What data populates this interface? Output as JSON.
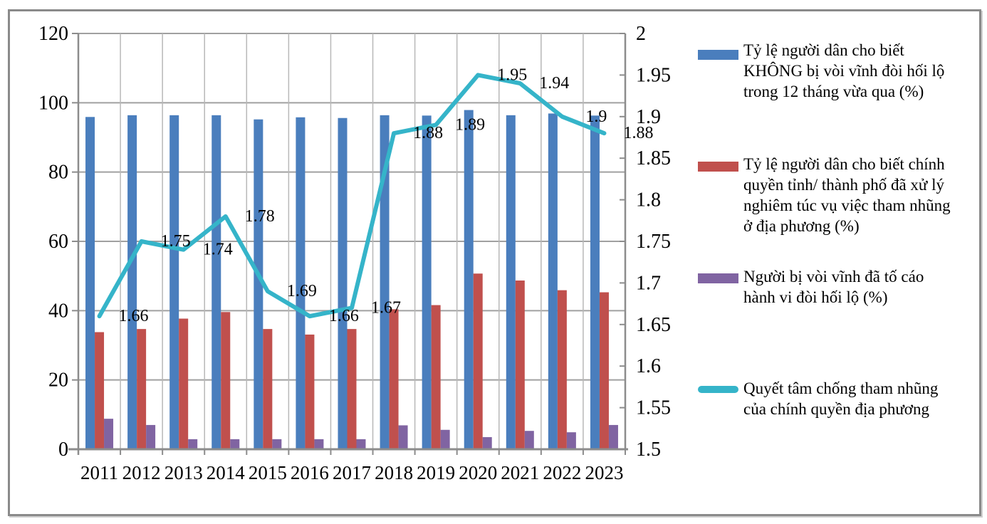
{
  "figure": {
    "background": "#ffffff",
    "frame_color": "#8a8a8a",
    "gridline_color": "#a0a0a0",
    "vertical_gridline_color": "#b8b8b8",
    "axis_color": "#8c8c8c",
    "text_color": "#000000"
  },
  "chart_data": {
    "type": "bar+line combo",
    "title": "",
    "xlabel": "",
    "ylabel": "",
    "grid": true,
    "legend_position": "right",
    "categories": [
      "2011",
      "2012",
      "2013",
      "2014",
      "2015",
      "2016",
      "2017",
      "2018",
      "2019",
      "2020",
      "2021",
      "2022",
      "2023"
    ],
    "left_axis": {
      "min": 0,
      "max": 120,
      "tick_labels": [
        "120",
        "100",
        "80",
        "60",
        "40",
        "20",
        "0"
      ]
    },
    "right_axis": {
      "min": 1.5,
      "max": 2,
      "tick_labels": [
        "2",
        "1.95",
        "1.9",
        "1.85",
        "1.8",
        "1.75",
        "1.7",
        "1.65",
        "1.6",
        "1.55",
        "1.5"
      ]
    },
    "series": [
      {
        "name": "Tỷ lệ người dân cho biết KHÔNG bị vòi vĩnh đòi hối lộ trong 12 tháng vừa qua (%)",
        "type": "bar",
        "axis": "left",
        "color": "#4a7ebd",
        "values": [
          95.9,
          96.4,
          96.4,
          96.4,
          95.2,
          95.8,
          95.6,
          96.4,
          96.3,
          97.9,
          96.4,
          96.9,
          96.3
        ]
      },
      {
        "name": "Tỷ lệ người dân cho biết chính quyền tỉnh/ thành phố đã xử lý nghiêm túc vụ việc tham nhũng ở địa phương (%)",
        "type": "bar",
        "axis": "left",
        "color": "#c0504d",
        "values": [
          33.8,
          34.7,
          37.7,
          39.6,
          34.7,
          33.1,
          34.7,
          40.4,
          41.6,
          50.7,
          48.7,
          45.9,
          45.3
        ]
      },
      {
        "name": "Người bị vòi vĩnh đã tố cáo hành vi đòi hối lộ (%)",
        "type": "bar",
        "axis": "left",
        "color": "#8064a2",
        "values": [
          8.8,
          7.0,
          2.9,
          2.9,
          2.9,
          2.9,
          2.9,
          6.9,
          5.6,
          3.5,
          5.3,
          4.9,
          7.0
        ]
      },
      {
        "name": "Quyết tâm chống tham nhũng của chính quyền địa phương",
        "type": "line",
        "axis": "right",
        "color": "#35b4c9",
        "values": [
          1.66,
          1.75,
          1.74,
          1.78,
          1.69,
          1.66,
          1.67,
          1.88,
          1.89,
          1.95,
          1.94,
          1.9,
          1.88
        ],
        "point_labels": [
          "1.66",
          "1.75",
          "1.74",
          "1.78",
          "1.69",
          "1.66",
          "1.67",
          "1.88",
          "1.89",
          "1.95",
          "1.94",
          "1.9",
          "1.88"
        ]
      }
    ]
  },
  "legend": {
    "items": [
      {
        "color": "#4a7ebd",
        "kind": "bar",
        "lines": [
          "Tỷ lệ người dân cho biết",
          "KHÔNG bị vòi vĩnh đòi hối lộ",
          "trong 12 tháng vừa qua (%)"
        ]
      },
      {
        "color": "#c0504d",
        "kind": "bar",
        "lines": [
          "Tỷ lệ người dân cho biết chính",
          "quyền tỉnh/ thành phố đã xử lý",
          "nghiêm túc vụ việc tham nhũng",
          "ở địa phương (%)"
        ]
      },
      {
        "color": "#8064a2",
        "kind": "bar",
        "lines": [
          "Người bị vòi vĩnh đã tố cáo",
          "hành vi đòi hối lộ (%)"
        ]
      },
      {
        "color": "#35b4c9",
        "kind": "line",
        "lines": [
          "Quyết tâm chống tham nhũng",
          "của chính quyền địa phương"
        ]
      }
    ]
  }
}
